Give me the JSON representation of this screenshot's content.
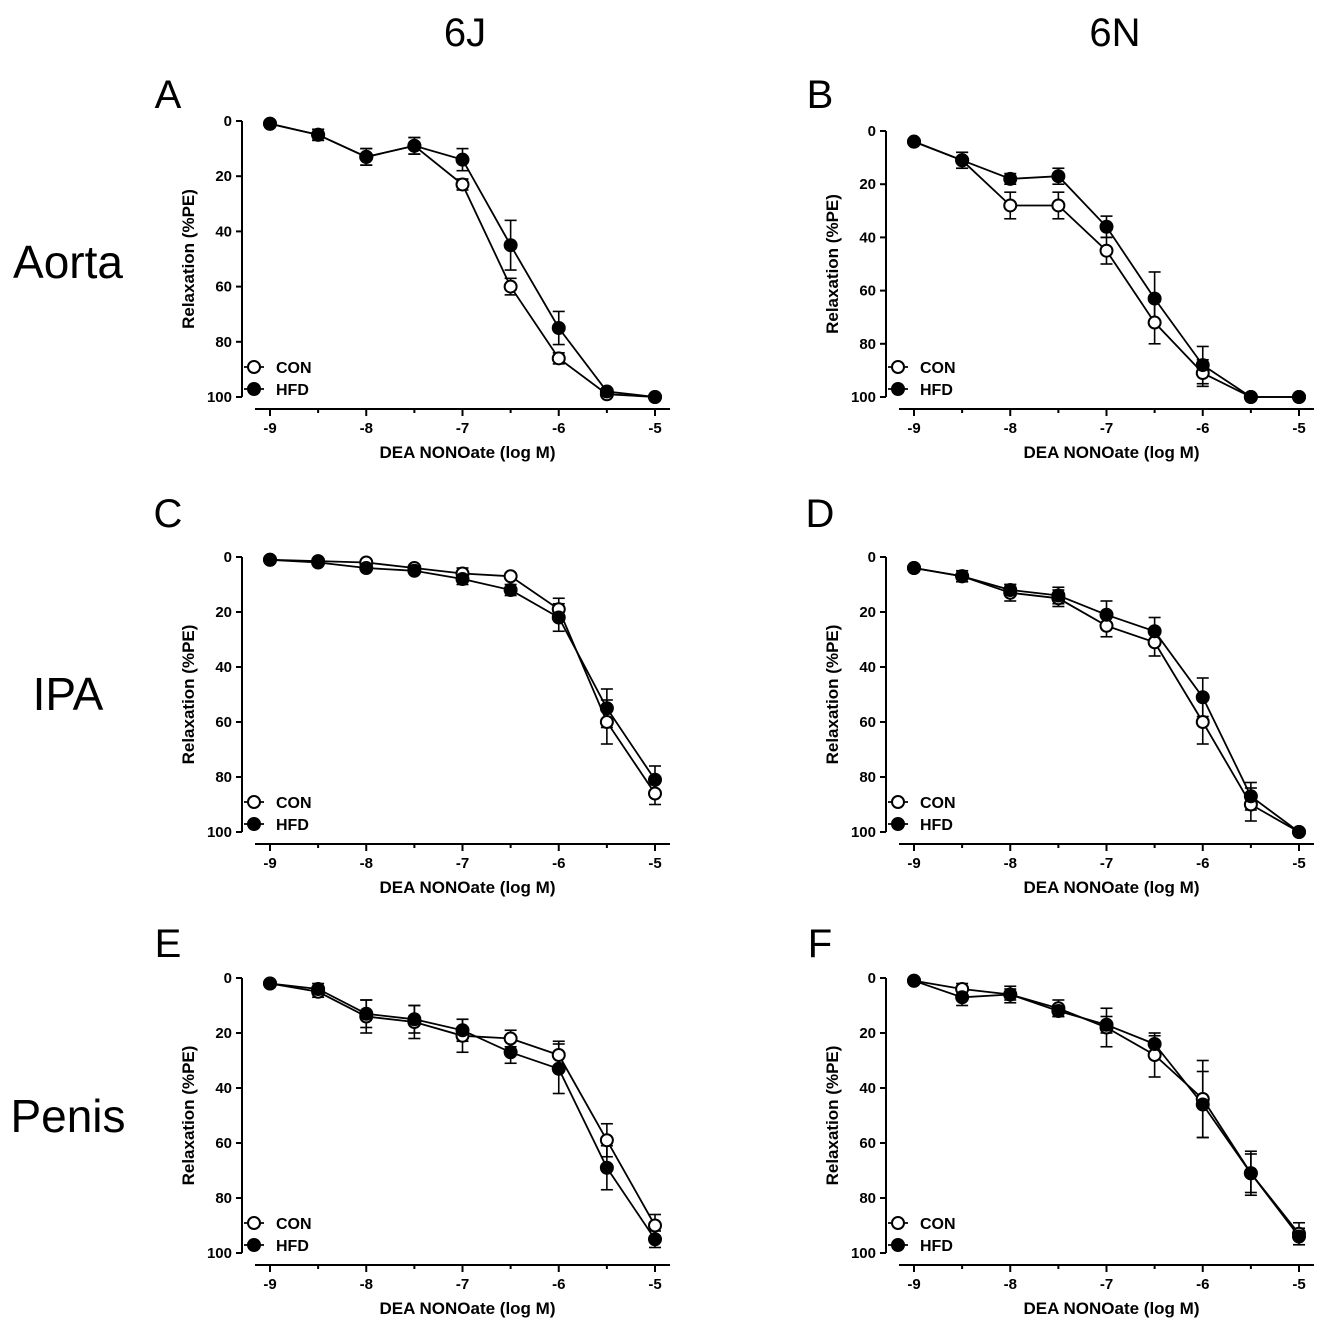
{
  "column_headers": [
    "6J",
    "6N"
  ],
  "row_labels": [
    "Aorta",
    "IPA",
    "Penis"
  ],
  "chart_data": [
    {
      "type": "line",
      "panel": "A",
      "xlabel": "DEA NONOate (log M)",
      "ylabel": "Relaxation (%PE)",
      "xlim": [
        -9,
        -5
      ],
      "ylim": [
        0,
        100
      ],
      "y_inverted": true,
      "xticks": [
        -9,
        -8,
        -7,
        -6,
        -5
      ],
      "yticks": [
        0,
        20,
        40,
        60,
        80,
        100
      ],
      "x": [
        -9,
        -8.5,
        -8,
        -7.5,
        -7,
        -6.5,
        -6,
        -5.5,
        -5
      ],
      "legend_position": "bottom-left",
      "series": [
        {
          "name": "CON",
          "marker": "open-circle",
          "values": [
            1,
            5,
            13,
            9,
            23,
            60,
            86,
            99,
            100
          ],
          "errors": [
            1,
            2,
            3,
            3,
            2,
            3,
            2,
            1,
            1
          ]
        },
        {
          "name": "HFD",
          "marker": "filled-circle",
          "values": [
            1,
            5,
            13,
            9,
            14,
            45,
            75,
            98,
            100
          ],
          "errors": [
            1,
            2,
            3,
            3,
            4,
            9,
            6,
            1,
            1
          ]
        }
      ]
    },
    {
      "type": "line",
      "panel": "B",
      "xlabel": "DEA NONOate (log M)",
      "ylabel": "Relaxation (%PE)",
      "xlim": [
        -9,
        -5
      ],
      "ylim": [
        0,
        100
      ],
      "y_inverted": true,
      "xticks": [
        -9,
        -8,
        -7,
        -6,
        -5
      ],
      "yticks": [
        0,
        20,
        40,
        60,
        80,
        100
      ],
      "x": [
        -9,
        -8.5,
        -8,
        -7.5,
        -7,
        -6.5,
        -6,
        -5.5,
        -5
      ],
      "legend_position": "bottom-left",
      "series": [
        {
          "name": "CON",
          "marker": "open-circle",
          "values": [
            4,
            11,
            28,
            28,
            45,
            72,
            91,
            100,
            100
          ],
          "errors": [
            1,
            3,
            5,
            5,
            5,
            8,
            5,
            1,
            1
          ]
        },
        {
          "name": "HFD",
          "marker": "filled-circle",
          "values": [
            4,
            11,
            18,
            17,
            36,
            63,
            88,
            100,
            100
          ],
          "errors": [
            1,
            3,
            2,
            3,
            4,
            10,
            7,
            1,
            1
          ]
        }
      ]
    },
    {
      "type": "line",
      "panel": "C",
      "xlabel": "DEA NONOate (log M)",
      "ylabel": "Relaxation (%PE)",
      "xlim": [
        -9,
        -5
      ],
      "ylim": [
        0,
        100
      ],
      "y_inverted": true,
      "xticks": [
        -9,
        -8,
        -7,
        -6,
        -5
      ],
      "yticks": [
        0,
        20,
        40,
        60,
        80,
        100
      ],
      "x": [
        -9,
        -8.5,
        -8,
        -7.5,
        -7,
        -6.5,
        -6,
        -5.5,
        -5
      ],
      "legend_position": "bottom-left",
      "series": [
        {
          "name": "CON",
          "marker": "open-circle",
          "values": [
            1,
            1.5,
            2,
            4,
            6,
            7,
            19,
            60,
            86
          ],
          "errors": [
            1,
            1,
            1,
            1,
            2,
            1,
            4,
            8,
            4
          ]
        },
        {
          "name": "HFD",
          "marker": "filled-circle",
          "values": [
            1,
            2,
            4,
            5,
            8,
            12,
            22,
            55,
            81
          ],
          "errors": [
            1,
            1,
            1,
            1,
            2,
            2,
            5,
            7,
            5
          ]
        }
      ]
    },
    {
      "type": "line",
      "panel": "D",
      "xlabel": "DEA NONOate (log M)",
      "ylabel": "Relaxation (%PE)",
      "xlim": [
        -9,
        -5
      ],
      "ylim": [
        0,
        100
      ],
      "y_inverted": true,
      "xticks": [
        -9,
        -8,
        -7,
        -6,
        -5
      ],
      "yticks": [
        0,
        20,
        40,
        60,
        80,
        100
      ],
      "x": [
        -9,
        -8.5,
        -8,
        -7.5,
        -7,
        -6.5,
        -6,
        -5.5,
        -5
      ],
      "legend_position": "bottom-left",
      "series": [
        {
          "name": "CON",
          "marker": "open-circle",
          "values": [
            4,
            7,
            13,
            15,
            25,
            31,
            60,
            90,
            100
          ],
          "errors": [
            1,
            2,
            3,
            3,
            4,
            5,
            8,
            6,
            1
          ]
        },
        {
          "name": "HFD",
          "marker": "filled-circle",
          "values": [
            4,
            7,
            12,
            14,
            21,
            27,
            51,
            87,
            100
          ],
          "errors": [
            1,
            2,
            2,
            3,
            5,
            5,
            7,
            5,
            1
          ]
        }
      ]
    },
    {
      "type": "line",
      "panel": "E",
      "xlabel": "DEA NONOate (log M)",
      "ylabel": "Relaxation (%PE)",
      "xlim": [
        -9,
        -5
      ],
      "ylim": [
        0,
        100
      ],
      "y_inverted": true,
      "xticks": [
        -9,
        -8,
        -7,
        -6,
        -5
      ],
      "yticks": [
        0,
        20,
        40,
        60,
        80,
        100
      ],
      "x": [
        -9,
        -8.5,
        -8,
        -7.5,
        -7,
        -6.5,
        -6,
        -5.5,
        -5
      ],
      "legend_position": "bottom-left",
      "series": [
        {
          "name": "CON",
          "marker": "open-circle",
          "values": [
            2,
            5,
            14,
            16,
            21,
            22,
            28,
            59,
            90
          ],
          "errors": [
            1,
            2,
            6,
            6,
            6,
            3,
            5,
            6,
            4
          ]
        },
        {
          "name": "HFD",
          "marker": "filled-circle",
          "values": [
            2,
            4,
            13,
            15,
            19,
            27,
            33,
            69,
            95
          ],
          "errors": [
            1,
            2,
            5,
            5,
            4,
            4,
            9,
            8,
            3
          ]
        }
      ]
    },
    {
      "type": "line",
      "panel": "F",
      "xlabel": "DEA NONOate (log M)",
      "ylabel": "Relaxation (%PE)",
      "xlim": [
        -9,
        -5
      ],
      "ylim": [
        0,
        100
      ],
      "y_inverted": true,
      "xticks": [
        -9,
        -8,
        -7,
        -6,
        -5
      ],
      "yticks": [
        0,
        20,
        40,
        60,
        80,
        100
      ],
      "x": [
        -9,
        -8.5,
        -8,
        -7.5,
        -7,
        -6.5,
        -6,
        -5.5,
        -5
      ],
      "legend_position": "bottom-left",
      "series": [
        {
          "name": "CON",
          "marker": "open-circle",
          "values": [
            1,
            4,
            6,
            11,
            18,
            28,
            44,
            71,
            93
          ],
          "errors": [
            1,
            2,
            3,
            3,
            7,
            8,
            14,
            8,
            4
          ]
        },
        {
          "name": "HFD",
          "marker": "filled-circle",
          "values": [
            1,
            7,
            6,
            12,
            17,
            24,
            46,
            71,
            94
          ],
          "errors": [
            1,
            3,
            2,
            2,
            3,
            3,
            12,
            7,
            3
          ]
        }
      ]
    }
  ]
}
